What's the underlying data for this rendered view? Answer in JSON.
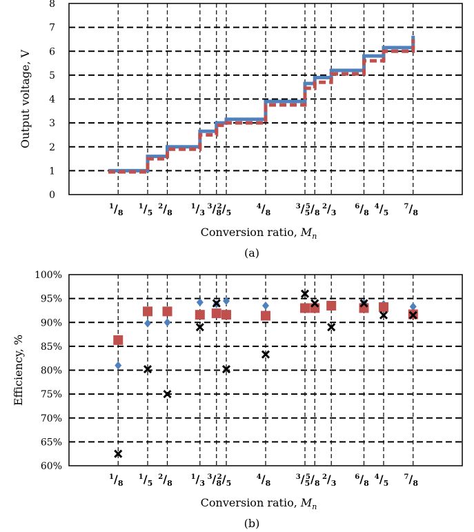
{
  "chart_data": [
    {
      "type": "line",
      "ylabel": "Output voltage, V",
      "xlabel_main": "Conversion ratio, ",
      "xlabel_var": "M",
      "xlabel_sub": "n",
      "caption": "(a)",
      "ylim": [
        0,
        8
      ],
      "yticks": [
        "0",
        "1",
        "2",
        "3",
        "4",
        "5",
        "6",
        "7",
        "8"
      ],
      "grid": "dashed",
      "x": [
        0.125,
        0.2,
        0.25,
        0.333,
        0.375,
        0.4,
        0.5,
        0.6,
        0.625,
        0.667,
        0.75,
        0.8,
        0.875
      ],
      "series": [
        {
          "color": "#4f81bd",
          "values": [
            1.0,
            1.6,
            2.0,
            2.65,
            3.0,
            3.15,
            3.9,
            4.65,
            4.9,
            5.2,
            5.8,
            6.15,
            6.65
          ]
        },
        {
          "color": "#c0504d",
          "values": [
            0.95,
            1.5,
            1.9,
            2.5,
            2.9,
            3.0,
            3.75,
            4.45,
            4.7,
            5.05,
            5.6,
            6.0,
            6.5
          ]
        }
      ]
    },
    {
      "type": "scatter",
      "ylabel": "Efficiency,  %",
      "xlabel_main": "Conversion ratio, ",
      "xlabel_var": "M",
      "xlabel_sub": "n",
      "caption": "(b)",
      "ylim": [
        60,
        100
      ],
      "yticks": [
        "60%",
        "65%",
        "70%",
        "75%",
        "80%",
        "85%",
        "90%",
        "95%",
        "100%"
      ],
      "grid": "dashed",
      "x": [
        0.125,
        0.2,
        0.25,
        0.333,
        0.375,
        0.4,
        0.5,
        0.6,
        0.625,
        0.667,
        0.75,
        0.8,
        0.875
      ],
      "series": [
        {
          "marker": "diamond",
          "color": "#4f81bd",
          "values": [
            81.0,
            89.8,
            90.0,
            94.2,
            93.8,
            94.5,
            93.5,
            93.2,
            93.3,
            93.5,
            94.0,
            93.8,
            93.3
          ]
        },
        {
          "marker": "square",
          "color": "#c0504d",
          "values": [
            86.3,
            92.3,
            92.3,
            91.6,
            91.9,
            91.6,
            91.4,
            93.0,
            93.0,
            93.5,
            93.0,
            93.2,
            91.7
          ]
        },
        {
          "marker": "x",
          "color": "#000000",
          "values": [
            62.5,
            80.2,
            75.0,
            89.0,
            94.0,
            80.2,
            83.3,
            96.0,
            94.0,
            89.0,
            94.0,
            91.5,
            91.5
          ]
        }
      ]
    }
  ],
  "x_tick_fracs": [
    {
      "num": "1",
      "den": "8"
    },
    {
      "num": "1",
      "den": "5"
    },
    {
      "num": "2",
      "den": "8"
    },
    {
      "num": "1",
      "den": "3"
    },
    {
      "num": "3",
      "den": "8"
    },
    {
      "num": "2",
      "den": "5"
    },
    {
      "num": "4",
      "den": "8"
    },
    {
      "num": "3",
      "den": "5"
    },
    {
      "num": "5",
      "den": "8"
    },
    {
      "num": "2",
      "den": "3"
    },
    {
      "num": "6",
      "den": "8"
    },
    {
      "num": "4",
      "den": "5"
    },
    {
      "num": "7",
      "den": "8"
    }
  ]
}
